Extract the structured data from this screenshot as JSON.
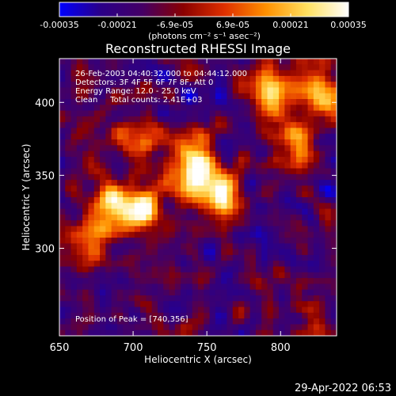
{
  "chart_data": {
    "type": "heatmap",
    "title": "Reconstructed RHESSI Image",
    "xlabel": "Heliocentric X (arcsec)",
    "ylabel": "Heliocentric Y (arcsec)",
    "xlim": [
      650,
      838
    ],
    "ylim": [
      240,
      430
    ],
    "x_ticks": [
      "650",
      "700",
      "750",
      "800"
    ],
    "y_ticks": [
      "300",
      "350",
      "400"
    ],
    "x_tick_values": [
      650,
      700,
      750,
      800
    ],
    "y_tick_values": [
      300,
      350,
      400
    ],
    "colorbar": {
      "min": -0.00035,
      "max": 0.00035,
      "tick_labels": [
        "-0.00035",
        "-0.00021",
        "-6.9e-05",
        "6.9e-05",
        "0.00021",
        "0.00035"
      ],
      "unit_label": "(photons cm⁻² s⁻¹ asec⁻²)",
      "colormap": [
        "#0000ff",
        "#2a0088",
        "#440066",
        "#8a0000",
        "#e03000",
        "#ff9000",
        "#ffe060",
        "#ffffff"
      ]
    },
    "annotations": [
      "26-Feb-2003 04:40:32.000 to 04:44:12.000",
      "Detectors: 3F 4F 5F 6F 7F 8F, Att 0",
      "Energy Range: 12.0 - 25.0 keV",
      "Clean     Total counts: 2.41E+03"
    ],
    "peak_label": "Position of Peak = [740,356]",
    "peak": [
      740,
      356
    ],
    "sources": [
      {
        "x": 740,
        "y": 357,
        "strength": 1.0
      },
      {
        "x": 758,
        "y": 335,
        "strength": 0.95
      },
      {
        "x": 703,
        "y": 328,
        "strength": 0.8
      },
      {
        "x": 828,
        "y": 405,
        "strength": 0.75
      },
      {
        "x": 795,
        "y": 408,
        "strength": 0.6
      },
      {
        "x": 685,
        "y": 330,
        "strength": 0.55
      },
      {
        "x": 700,
        "y": 372,
        "strength": 0.55
      },
      {
        "x": 812,
        "y": 372,
        "strength": 0.5
      },
      {
        "x": 665,
        "y": 305,
        "strength": 0.45
      }
    ]
  },
  "footer": {
    "timestamp": "29-Apr-2022 06:53"
  }
}
